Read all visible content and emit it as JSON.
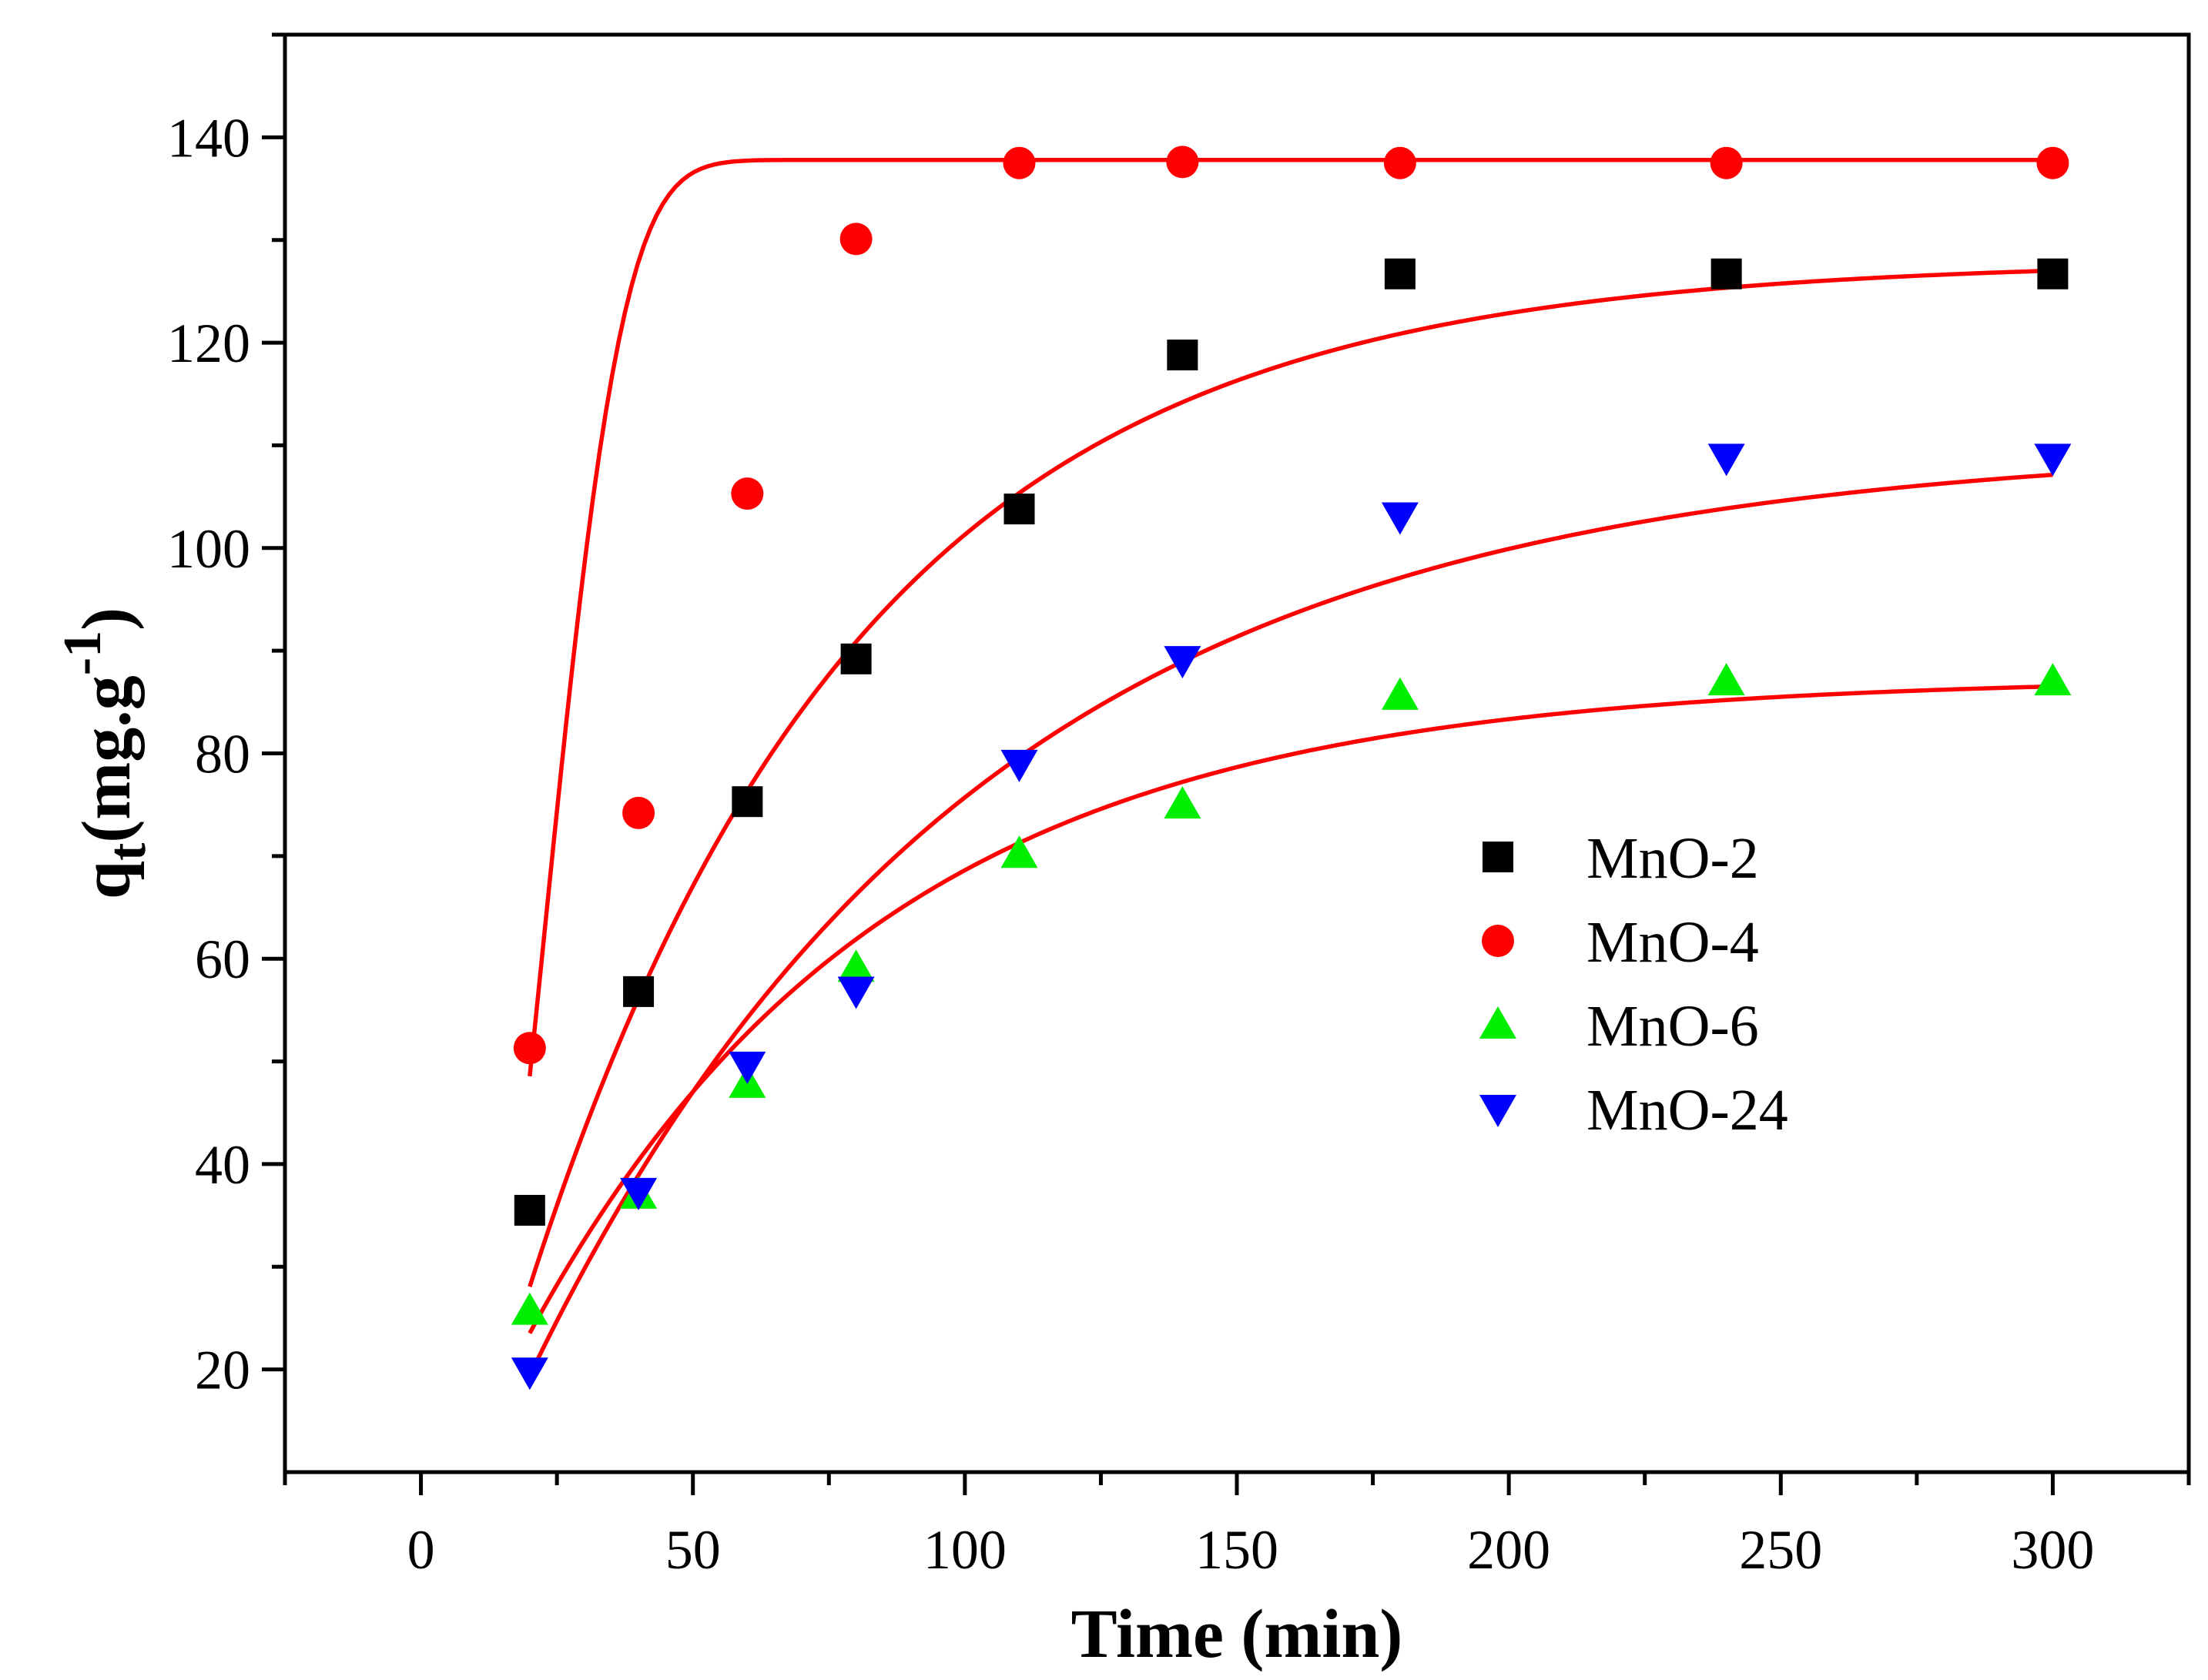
{
  "chart_data": {
    "type": "scatter",
    "title": "",
    "xlabel": "Time (min)",
    "ylabel": {
      "base": "q",
      "subscript": "t",
      "unit_open": "(mg.g",
      "superscript": "-1",
      "unit_close": ")"
    },
    "xlim": [
      -25,
      325
    ],
    "ylim": [
      10,
      150
    ],
    "xticks": [
      0,
      50,
      100,
      150,
      200,
      250,
      300
    ],
    "xtick_labels": [
      "0",
      "50",
      "100",
      "150",
      "200",
      "250",
      "300"
    ],
    "yticks": [
      20,
      40,
      60,
      80,
      100,
      120,
      140
    ],
    "ytick_labels": [
      "20",
      "40",
      "60",
      "80",
      "100",
      "120",
      "140"
    ],
    "x_minor_step": 25,
    "y_minor_step": 10,
    "grid": false,
    "legend_position": "center-right",
    "fit_color": "#ff0000",
    "series": [
      {
        "name": "MnO-2",
        "marker": "square",
        "color": "#000000",
        "x": [
          20,
          40,
          60,
          80,
          110,
          140,
          180,
          240,
          300
        ],
        "y": [
          35.5,
          56.8,
          75.3,
          89.2,
          103.8,
          118.8,
          126.7,
          126.7,
          126.7
        ],
        "fit": {
          "model": "pfo",
          "qe": 128,
          "k": 0.0165,
          "x0": 5
        }
      },
      {
        "name": "MnO-4",
        "marker": "circle",
        "color": "#ff0000",
        "x": [
          20,
          40,
          60,
          80,
          110,
          140,
          180,
          240,
          300
        ],
        "y": [
          51.3,
          74.2,
          105.3,
          130.1,
          137.5,
          137.6,
          137.5,
          137.5,
          137.5
        ],
        "fit": {
          "model": "sigmoid",
          "qe": 137.8,
          "k": 0.00018,
          "n": 2.6
        }
      },
      {
        "name": "MnO-6",
        "marker": "triangle-up",
        "color": "#00ee00",
        "x": [
          20,
          40,
          60,
          80,
          110,
          140,
          180,
          240,
          300
        ],
        "y": [
          25.7,
          37.0,
          47.8,
          59.1,
          70.2,
          75.0,
          85.6,
          87.0,
          87.0
        ],
        "fit": {
          "model": "pfo",
          "qe": 87.4,
          "k": 0.0153,
          "x0": -0.5
        }
      },
      {
        "name": "MnO-24",
        "marker": "triangle-down",
        "color": "#0000ff",
        "x": [
          20,
          40,
          60,
          80,
          110,
          140,
          180,
          240,
          300
        ],
        "y": [
          19.8,
          37.3,
          49.6,
          56.9,
          79.0,
          89.1,
          103.1,
          108.8,
          108.8
        ],
        "fit": {
          "model": "pfo",
          "qe": 110.2,
          "k": 0.0121,
          "x0": 4
        }
      }
    ]
  }
}
